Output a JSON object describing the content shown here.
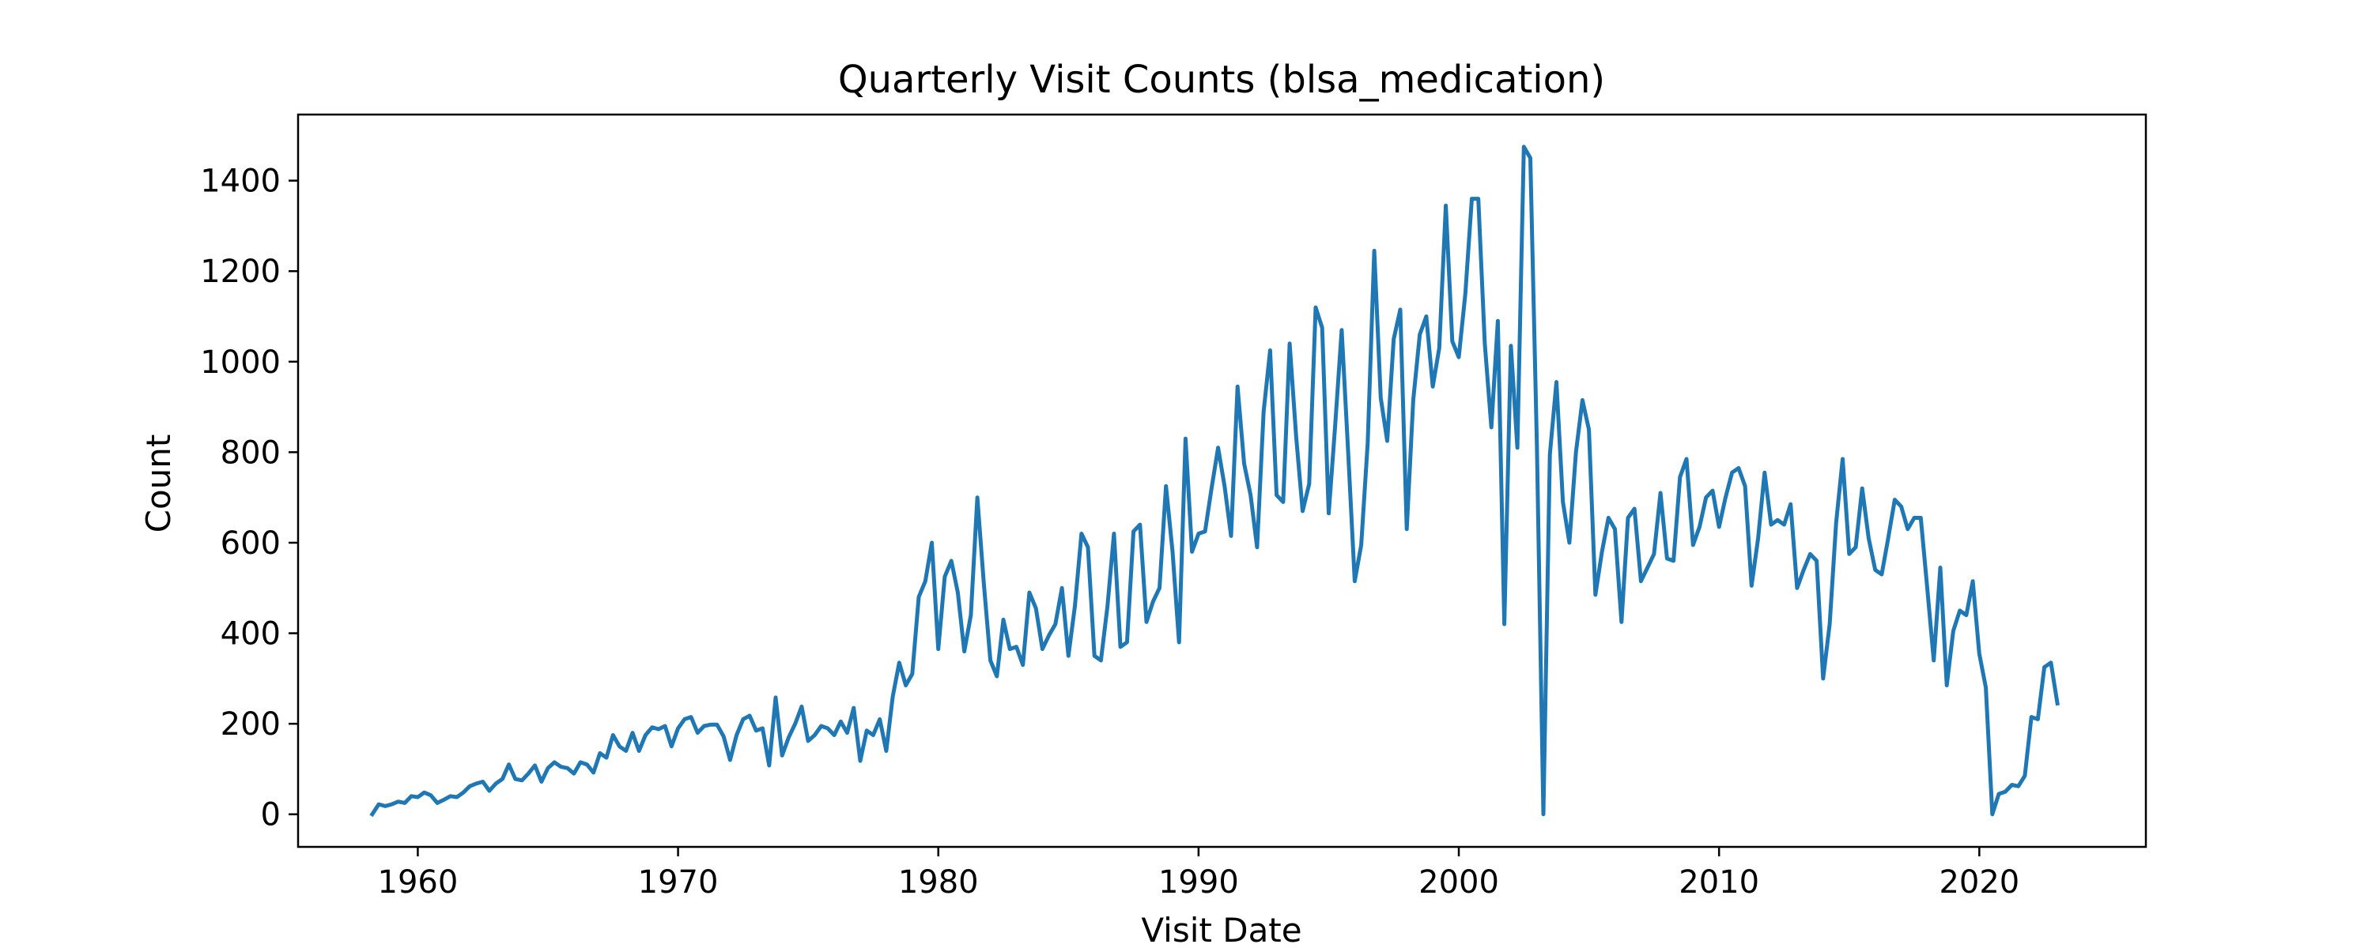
{
  "chart_data": {
    "type": "line",
    "title": "Quarterly Visit Counts (blsa_medication)",
    "xlabel": "Visit Date",
    "ylabel": "Count",
    "xlim": [
      1955.4,
      2026.4
    ],
    "ylim": [
      -72,
      1546
    ],
    "x_ticks": [
      1960,
      1970,
      1980,
      1990,
      2000,
      2010,
      2020
    ],
    "y_ticks": [
      0,
      200,
      400,
      600,
      800,
      1000,
      1200,
      1400
    ],
    "grid": false,
    "legend": "none",
    "line_color": "#1f77b4",
    "series": [
      {
        "x": [
          1958.25,
          1958.5,
          1958.75,
          1959.0,
          1959.25,
          1959.5,
          1959.75,
          1960.0,
          1960.25,
          1960.5,
          1960.75,
          1961.0,
          1961.25,
          1961.5,
          1961.75,
          1962.0,
          1962.25,
          1962.5,
          1962.75,
          1963.0,
          1963.25,
          1963.5,
          1963.75,
          1964.0,
          1964.25,
          1964.5,
          1964.75,
          1965.0,
          1965.25,
          1965.5,
          1965.75,
          1966.0,
          1966.25,
          1966.5,
          1966.75,
          1967.0,
          1967.25,
          1967.5,
          1967.75,
          1968.0,
          1968.25,
          1968.5,
          1968.75,
          1969.0,
          1969.25,
          1969.5,
          1969.75,
          1970.0,
          1970.25,
          1970.5,
          1970.75,
          1971.0,
          1971.25,
          1971.5,
          1971.75,
          1972.0,
          1972.25,
          1972.5,
          1972.75,
          1973.0,
          1973.25,
          1973.5,
          1973.75,
          1974.0,
          1974.25,
          1974.5,
          1974.75,
          1975.0,
          1975.25,
          1975.5,
          1975.75,
          1976.0,
          1976.25,
          1976.5,
          1976.75,
          1977.0,
          1977.25,
          1977.5,
          1977.75,
          1978.0,
          1978.25,
          1978.5,
          1978.75,
          1979.0,
          1979.25,
          1979.5,
          1979.75,
          1980.0,
          1980.25,
          1980.5,
          1980.75,
          1981.0,
          1981.25,
          1981.5,
          1981.75,
          1982.0,
          1982.25,
          1982.5,
          1982.75,
          1983.0,
          1983.25,
          1983.5,
          1983.75,
          1984.0,
          1984.25,
          1984.5,
          1984.75,
          1985.0,
          1985.25,
          1985.5,
          1985.75,
          1986.0,
          1986.25,
          1986.5,
          1986.75,
          1987.0,
          1987.25,
          1987.5,
          1987.75,
          1988.0,
          1988.25,
          1988.5,
          1988.75,
          1989.0,
          1989.25,
          1989.5,
          1989.75,
          1990.0,
          1990.25,
          1990.5,
          1990.75,
          1991.0,
          1991.25,
          1991.5,
          1991.75,
          1992.0,
          1992.25,
          1992.5,
          1992.75,
          1993.0,
          1993.25,
          1993.5,
          1993.75,
          1994.0,
          1994.25,
          1994.5,
          1994.75,
          1995.0,
          1995.25,
          1995.5,
          1995.75,
          1996.0,
          1996.25,
          1996.5,
          1996.75,
          1997.0,
          1997.25,
          1997.5,
          1997.75,
          1998.0,
          1998.25,
          1998.5,
          1998.75,
          1999.0,
          1999.25,
          1999.5,
          1999.75,
          2000.0,
          2000.25,
          2000.5,
          2000.75,
          2001.0,
          2001.25,
          2001.5,
          2001.75,
          2002.0,
          2002.25,
          2002.5,
          2002.75,
          2003.0,
          2003.25,
          2003.5,
          2003.75,
          2004.0,
          2004.25,
          2004.5,
          2004.75,
          2005.0,
          2005.25,
          2005.5,
          2005.75,
          2006.0,
          2006.25,
          2006.5,
          2006.75,
          2007.0,
          2007.25,
          2007.5,
          2007.75,
          2008.0,
          2008.25,
          2008.5,
          2008.75,
          2009.0,
          2009.25,
          2009.5,
          2009.75,
          2010.0,
          2010.25,
          2010.5,
          2010.75,
          2011.0,
          2011.25,
          2011.5,
          2011.75,
          2012.0,
          2012.25,
          2012.5,
          2012.75,
          2013.0,
          2013.25,
          2013.5,
          2013.75,
          2014.0,
          2014.25,
          2014.5,
          2014.75,
          2015.0,
          2015.25,
          2015.5,
          2015.75,
          2016.0,
          2016.25,
          2016.5,
          2016.75,
          2017.0,
          2017.25,
          2017.5,
          2017.75,
          2018.0,
          2018.25,
          2018.5,
          2018.75,
          2019.0,
          2019.25,
          2019.5,
          2019.75,
          2020.0,
          2020.25,
          2020.5,
          2020.75,
          2021.0,
          2021.25,
          2021.5,
          2021.75,
          2022.0,
          2022.25,
          2022.5,
          2022.75,
          2023.0
        ],
        "y": [
          0,
          22,
          18,
          22,
          28,
          25,
          40,
          38,
          48,
          42,
          25,
          32,
          40,
          38,
          48,
          62,
          68,
          72,
          52,
          68,
          78,
          110,
          78,
          75,
          90,
          108,
          72,
          102,
          115,
          105,
          102,
          90,
          115,
          110,
          92,
          135,
          125,
          175,
          150,
          140,
          180,
          140,
          175,
          192,
          188,
          195,
          150,
          190,
          210,
          215,
          180,
          195,
          198,
          198,
          172,
          120,
          175,
          210,
          218,
          185,
          190,
          108,
          258,
          130,
          170,
          200,
          238,
          162,
          175,
          195,
          190,
          175,
          205,
          180,
          235,
          118,
          185,
          175,
          210,
          140,
          260,
          335,
          285,
          310,
          480,
          515,
          600,
          365,
          525,
          560,
          490,
          360,
          440,
          700,
          510,
          340,
          305,
          430,
          365,
          370,
          330,
          490,
          455,
          365,
          395,
          420,
          500,
          350,
          460,
          620,
          590,
          350,
          340,
          460,
          620,
          370,
          380,
          625,
          640,
          425,
          470,
          500,
          725,
          580,
          380,
          830,
          580,
          620,
          625,
          720,
          810,
          725,
          615,
          945,
          775,
          705,
          590,
          890,
          1025,
          705,
          690,
          1040,
          835,
          670,
          730,
          1120,
          1075,
          665,
          860,
          1070,
          800,
          515,
          595,
          820,
          1245,
          920,
          825,
          1050,
          1115,
          630,
          915,
          1060,
          1100,
          945,
          1030,
          1345,
          1045,
          1010,
          1150,
          1360,
          1360,
          1040,
          855,
          1090,
          420,
          1035,
          810,
          1475,
          1450,
          815,
          0,
          795,
          955,
          690,
          600,
          800,
          915,
          850,
          485,
          580,
          655,
          630,
          425,
          655,
          675,
          515,
          545,
          575,
          710,
          565,
          560,
          745,
          785,
          595,
          635,
          700,
          715,
          635,
          700,
          755,
          765,
          725,
          505,
          610,
          755,
          640,
          650,
          640,
          685,
          500,
          540,
          575,
          560,
          300,
          420,
          645,
          785,
          575,
          590,
          720,
          610,
          540,
          530,
          610,
          695,
          680,
          630,
          655,
          655,
          500,
          340,
          545,
          285,
          405,
          450,
          440,
          515,
          355,
          280,
          0,
          45,
          50,
          65,
          62,
          85,
          215,
          210,
          325,
          335,
          245
        ]
      }
    ]
  }
}
